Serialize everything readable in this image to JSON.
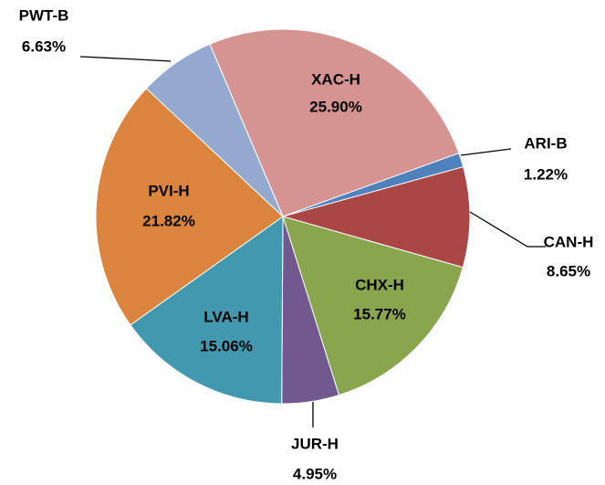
{
  "chart_data": {
    "type": "pie",
    "categories": [
      "XAC-H",
      "ARI-B",
      "CAN-H",
      "CHX-H",
      "JUR-H",
      "LVA-H",
      "PVI-H",
      "PWT-B"
    ],
    "values": [
      25.9,
      1.22,
      8.65,
      15.77,
      4.95,
      15.06,
      21.82,
      6.63
    ],
    "value_labels": [
      "25.90%",
      "1.22%",
      "8.65%",
      "15.77%",
      "4.95%",
      "15.06%",
      "21.82%",
      "6.63%"
    ],
    "colors": [
      "#d59391",
      "#4f81bd",
      "#aa4643",
      "#89a54e",
      "#71588f",
      "#4198af",
      "#db843d",
      "#93a9cf"
    ]
  }
}
